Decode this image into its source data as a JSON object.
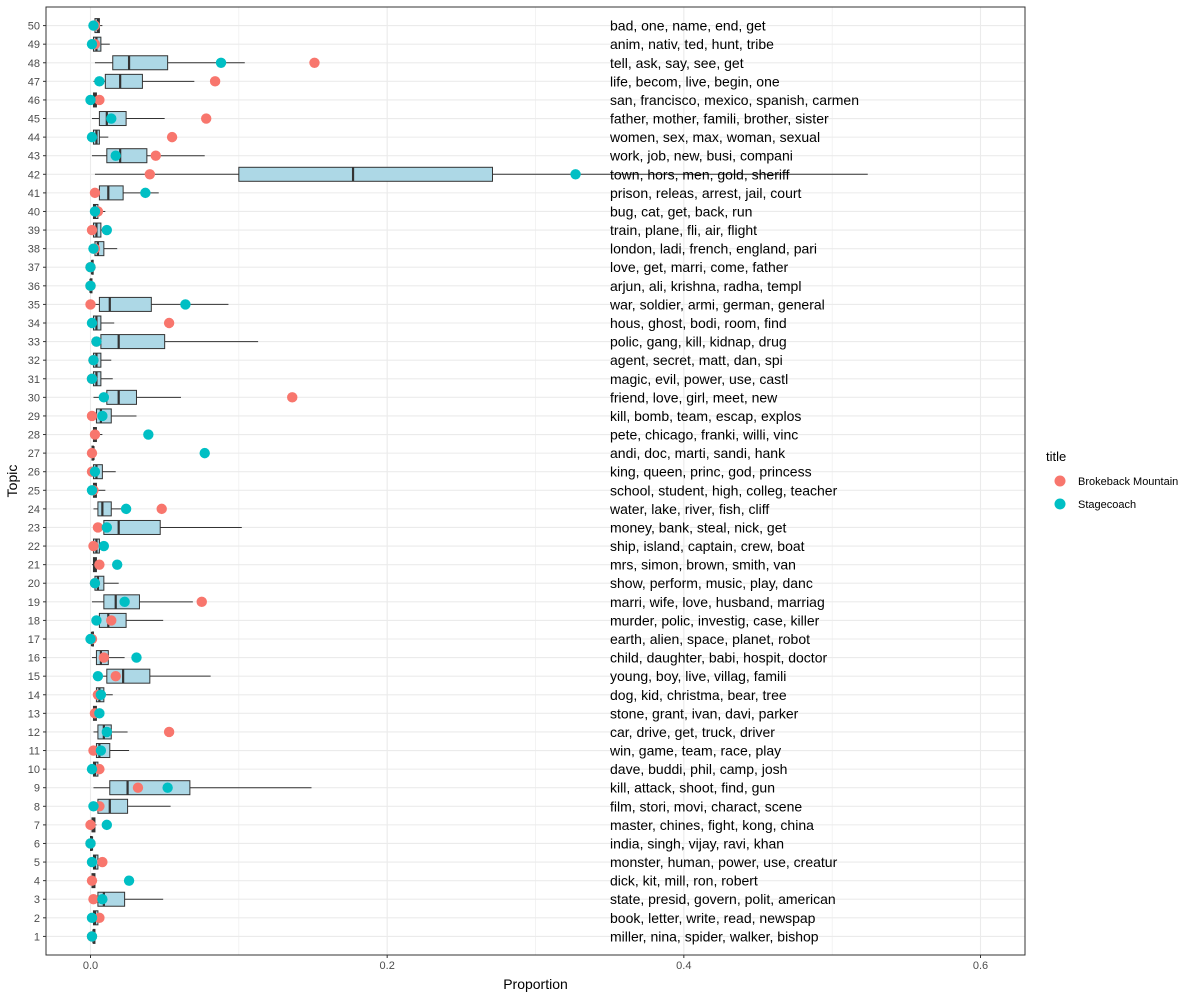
{
  "chart_data": {
    "type": "boxplot",
    "xlabel": "Proportion",
    "ylabel": "Topic",
    "xlim": [
      -0.03,
      0.63
    ],
    "x_ticks": [
      "0.0",
      "0.2",
      "0.4",
      "0.6"
    ],
    "x_tick_values": [
      0,
      0.2,
      0.4,
      0.6
    ],
    "grid": true,
    "legend": {
      "title": "title",
      "placement": "right",
      "entries": [
        {
          "name": "Brokeback Mountain",
          "color": "#F8766D"
        },
        {
          "name": "Stagecoach",
          "color": "#00BFC4"
        }
      ]
    },
    "colors": {
      "box_fill": "#ADD8E6",
      "box_line": "#333333",
      "grid": "#EBEBEB",
      "panel_border": "#333333"
    },
    "topics": [
      {
        "topic": "1",
        "terms": "miller, nina, spider, walker, bishop",
        "box": [
          0.001,
          0.002,
          0.002,
          0.003,
          0.004
        ],
        "brokeback": 0.001,
        "stagecoach": 0.001
      },
      {
        "topic": "2",
        "terms": "book, letter, write, read, newspap",
        "box": [
          0.001,
          0.002,
          0.003,
          0.005,
          0.008
        ],
        "brokeback": 0.006,
        "stagecoach": 0.001
      },
      {
        "topic": "3",
        "terms": "state, presid, govern, polit, american",
        "box": [
          0.002,
          0.005,
          0.009,
          0.023,
          0.049
        ],
        "brokeback": 0.002,
        "stagecoach": 0.008
      },
      {
        "topic": "4",
        "terms": "dick, kit, mill, ron, robert",
        "box": [
          0.001,
          0.001,
          0.002,
          0.003,
          0.004
        ],
        "brokeback": 0.001,
        "stagecoach": 0.026
      },
      {
        "topic": "5",
        "terms": "monster, human, power, use, creatur",
        "box": [
          0.001,
          0.002,
          0.003,
          0.005,
          0.007
        ],
        "brokeback": 0.008,
        "stagecoach": 0.001
      },
      {
        "topic": "6",
        "terms": "india, singh, vijay, ravi, khan",
        "box": [
          0.0,
          0.0,
          0.001,
          0.001,
          0.002
        ],
        "brokeback": 0.0,
        "stagecoach": 0.0
      },
      {
        "topic": "7",
        "terms": "master, chines, fight, kong, china",
        "box": [
          0.001,
          0.001,
          0.002,
          0.003,
          0.004
        ],
        "brokeback": 0.0,
        "stagecoach": 0.011
      },
      {
        "topic": "8",
        "terms": "film, stori, movi, charact, scene",
        "box": [
          0.001,
          0.005,
          0.013,
          0.025,
          0.054
        ],
        "brokeback": 0.006,
        "stagecoach": 0.002
      },
      {
        "topic": "9",
        "terms": "kill, attack, shoot, find, gun",
        "box": [
          0.002,
          0.013,
          0.025,
          0.067,
          0.149
        ],
        "brokeback": 0.032,
        "stagecoach": 0.052
      },
      {
        "topic": "10",
        "terms": "dave, buddi, phil, camp, josh",
        "box": [
          0.001,
          0.002,
          0.003,
          0.005,
          0.008
        ],
        "brokeback": 0.006,
        "stagecoach": 0.001
      },
      {
        "topic": "11",
        "terms": "win, game, team, race, play",
        "box": [
          0.001,
          0.004,
          0.006,
          0.013,
          0.026
        ],
        "brokeback": 0.002,
        "stagecoach": 0.007
      },
      {
        "topic": "12",
        "terms": "car, drive, get, truck, driver",
        "box": [
          0.002,
          0.005,
          0.009,
          0.014,
          0.025
        ],
        "brokeback": 0.053,
        "stagecoach": 0.011
      },
      {
        "topic": "13",
        "terms": "stone, grant, ivan, davi, parker",
        "box": [
          0.001,
          0.002,
          0.003,
          0.004,
          0.006
        ],
        "brokeback": 0.003,
        "stagecoach": 0.006
      },
      {
        "topic": "14",
        "terms": "dog, kid, christma, bear, tree",
        "box": [
          0.002,
          0.004,
          0.006,
          0.009,
          0.015
        ],
        "brokeback": 0.005,
        "stagecoach": 0.007
      },
      {
        "topic": "15",
        "terms": "young, boy, live, villag, famili",
        "box": [
          0.003,
          0.011,
          0.022,
          0.04,
          0.081
        ],
        "brokeback": 0.017,
        "stagecoach": 0.005
      },
      {
        "topic": "16",
        "terms": "child, daughter, babi, hospit, doctor",
        "box": [
          0.001,
          0.004,
          0.007,
          0.012,
          0.023
        ],
        "brokeback": 0.009,
        "stagecoach": 0.031
      },
      {
        "topic": "17",
        "terms": "earth, alien, space, planet, robot",
        "box": [
          0.0,
          0.001,
          0.001,
          0.002,
          0.003
        ],
        "brokeback": 0.001,
        "stagecoach": 0.0
      },
      {
        "topic": "18",
        "terms": "murder, polic, investig, case, killer",
        "box": [
          0.001,
          0.006,
          0.012,
          0.024,
          0.049
        ],
        "brokeback": 0.014,
        "stagecoach": 0.004
      },
      {
        "topic": "19",
        "terms": "marri, wife, love, husband, marriag",
        "box": [
          0.001,
          0.009,
          0.017,
          0.033,
          0.069
        ],
        "brokeback": 0.075,
        "stagecoach": 0.023
      },
      {
        "topic": "20",
        "terms": "show, perform, music, play, danc",
        "box": [
          0.001,
          0.003,
          0.005,
          0.009,
          0.019
        ],
        "brokeback": 0.003,
        "stagecoach": 0.003
      },
      {
        "topic": "21",
        "terms": "mrs, simon, brown, smith, van",
        "box": [
          0.001,
          0.002,
          0.003,
          0.004,
          0.006
        ],
        "brokeback": 0.006,
        "stagecoach": 0.018
      },
      {
        "topic": "22",
        "terms": "ship, island, captain, crew, boat",
        "box": [
          0.001,
          0.002,
          0.004,
          0.006,
          0.01
        ],
        "brokeback": 0.002,
        "stagecoach": 0.009
      },
      {
        "topic": "23",
        "terms": "money, bank, steal, nick, get",
        "box": [
          0.002,
          0.009,
          0.019,
          0.047,
          0.102
        ],
        "brokeback": 0.005,
        "stagecoach": 0.011
      },
      {
        "topic": "24",
        "terms": "water, lake, river, fish, cliff",
        "box": [
          0.002,
          0.005,
          0.008,
          0.014,
          0.025
        ],
        "brokeback": 0.048,
        "stagecoach": 0.024
      },
      {
        "topic": "25",
        "terms": "school, student, high, colleg, teacher",
        "box": [
          0.001,
          0.002,
          0.003,
          0.004,
          0.01
        ],
        "brokeback": 0.002,
        "stagecoach": 0.001
      },
      {
        "topic": "26",
        "terms": "king, queen, princ, god, princess",
        "box": [
          0.001,
          0.002,
          0.004,
          0.008,
          0.017
        ],
        "brokeback": 0.001,
        "stagecoach": 0.003
      },
      {
        "topic": "27",
        "terms": "andi, doc, marti, sandi, hank",
        "box": [
          0.001,
          0.001,
          0.002,
          0.002,
          0.003
        ],
        "brokeback": 0.001,
        "stagecoach": 0.077
      },
      {
        "topic": "28",
        "terms": "pete, chicago, franki, willi, vinc",
        "box": [
          0.001,
          0.002,
          0.003,
          0.004,
          0.008
        ],
        "brokeback": 0.003,
        "stagecoach": 0.039
      },
      {
        "topic": "29",
        "terms": "kill, bomb, team, escap, explos",
        "box": [
          0.001,
          0.004,
          0.007,
          0.014,
          0.031
        ],
        "brokeback": 0.001,
        "stagecoach": 0.008
      },
      {
        "topic": "30",
        "terms": "friend, love, girl, meet, new",
        "box": [
          0.002,
          0.011,
          0.019,
          0.031,
          0.061
        ],
        "brokeback": 0.136,
        "stagecoach": 0.009
      },
      {
        "topic": "31",
        "terms": "magic, evil, power, use, castl",
        "box": [
          0.001,
          0.002,
          0.004,
          0.007,
          0.015
        ],
        "brokeback": 0.001,
        "stagecoach": 0.001
      },
      {
        "topic": "32",
        "terms": "agent, secret, matt, dan, spi",
        "box": [
          0.001,
          0.002,
          0.004,
          0.007,
          0.014
        ],
        "brokeback": 0.002,
        "stagecoach": 0.002
      },
      {
        "topic": "33",
        "terms": "polic, gang, kill, kidnap, drug",
        "box": [
          0.002,
          0.007,
          0.019,
          0.05,
          0.113
        ],
        "brokeback": 0.004,
        "stagecoach": 0.004
      },
      {
        "topic": "34",
        "terms": "hous, ghost, bodi, room, find",
        "box": [
          0.001,
          0.002,
          0.004,
          0.007,
          0.016
        ],
        "brokeback": 0.053,
        "stagecoach": 0.001
      },
      {
        "topic": "35",
        "terms": "war, soldier, armi, german, general",
        "box": [
          0.001,
          0.006,
          0.013,
          0.041,
          0.093
        ],
        "brokeback": 0.0,
        "stagecoach": 0.064
      },
      {
        "topic": "36",
        "terms": "arjun, ali, krishna, radha, templ",
        "box": [
          0.0,
          0.0,
          0.0,
          0.001,
          0.001
        ],
        "brokeback": 0.0,
        "stagecoach": 0.0
      },
      {
        "topic": "37",
        "terms": "love, get, marri, come, father",
        "box": [
          0.0,
          0.001,
          0.001,
          0.001,
          0.002
        ],
        "brokeback": 0.0,
        "stagecoach": 0.0
      },
      {
        "topic": "38",
        "terms": "london, ladi, french, england, pari",
        "box": [
          0.001,
          0.003,
          0.005,
          0.009,
          0.018
        ],
        "brokeback": 0.003,
        "stagecoach": 0.002
      },
      {
        "topic": "39",
        "terms": "train, plane, fli, air, flight",
        "box": [
          0.001,
          0.002,
          0.004,
          0.007,
          0.013
        ],
        "brokeback": 0.001,
        "stagecoach": 0.011
      },
      {
        "topic": "40",
        "terms": "bug, cat, get, back, run",
        "box": [
          0.001,
          0.002,
          0.003,
          0.005,
          0.01
        ],
        "brokeback": 0.005,
        "stagecoach": 0.003
      },
      {
        "topic": "41",
        "terms": "prison, releas, arrest, jail, court",
        "box": [
          0.002,
          0.006,
          0.012,
          0.022,
          0.046
        ],
        "brokeback": 0.003,
        "stagecoach": 0.037
      },
      {
        "topic": "42",
        "terms": "town, hors, men, gold, sheriff",
        "box": [
          0.003,
          0.1,
          0.177,
          0.271,
          0.524
        ],
        "brokeback": 0.04,
        "stagecoach": 0.327
      },
      {
        "topic": "43",
        "terms": "work, job, new, busi, compani",
        "box": [
          0.001,
          0.011,
          0.02,
          0.038,
          0.077
        ],
        "brokeback": 0.044,
        "stagecoach": 0.017
      },
      {
        "topic": "44",
        "terms": "women, sex, max, woman, sexual",
        "box": [
          0.001,
          0.002,
          0.004,
          0.006,
          0.012
        ],
        "brokeback": 0.055,
        "stagecoach": 0.001
      },
      {
        "topic": "45",
        "terms": "father, mother, famili, brother, sister",
        "box": [
          0.001,
          0.006,
          0.011,
          0.024,
          0.05
        ],
        "brokeback": 0.078,
        "stagecoach": 0.014
      },
      {
        "topic": "46",
        "terms": "san, francisco, mexico, spanish, carmen",
        "box": [
          0.001,
          0.002,
          0.003,
          0.004,
          0.006
        ],
        "brokeback": 0.006,
        "stagecoach": 0.0
      },
      {
        "topic": "47",
        "terms": "life, becom, live, begin, one",
        "box": [
          0.002,
          0.01,
          0.02,
          0.035,
          0.07
        ],
        "brokeback": 0.084,
        "stagecoach": 0.006
      },
      {
        "topic": "48",
        "terms": "tell, ask, say, see, get",
        "box": [
          0.003,
          0.015,
          0.026,
          0.052,
          0.104
        ],
        "brokeback": 0.151,
        "stagecoach": 0.088
      },
      {
        "topic": "49",
        "terms": "anim, nativ, ted, hunt, tribe",
        "box": [
          0.001,
          0.002,
          0.004,
          0.007,
          0.013
        ],
        "brokeback": 0.003,
        "stagecoach": 0.001
      },
      {
        "topic": "50",
        "terms": "bad, one, name, end, get",
        "box": [
          0.001,
          0.003,
          0.005,
          0.006,
          0.008
        ],
        "brokeback": 0.003,
        "stagecoach": 0.002
      }
    ]
  }
}
